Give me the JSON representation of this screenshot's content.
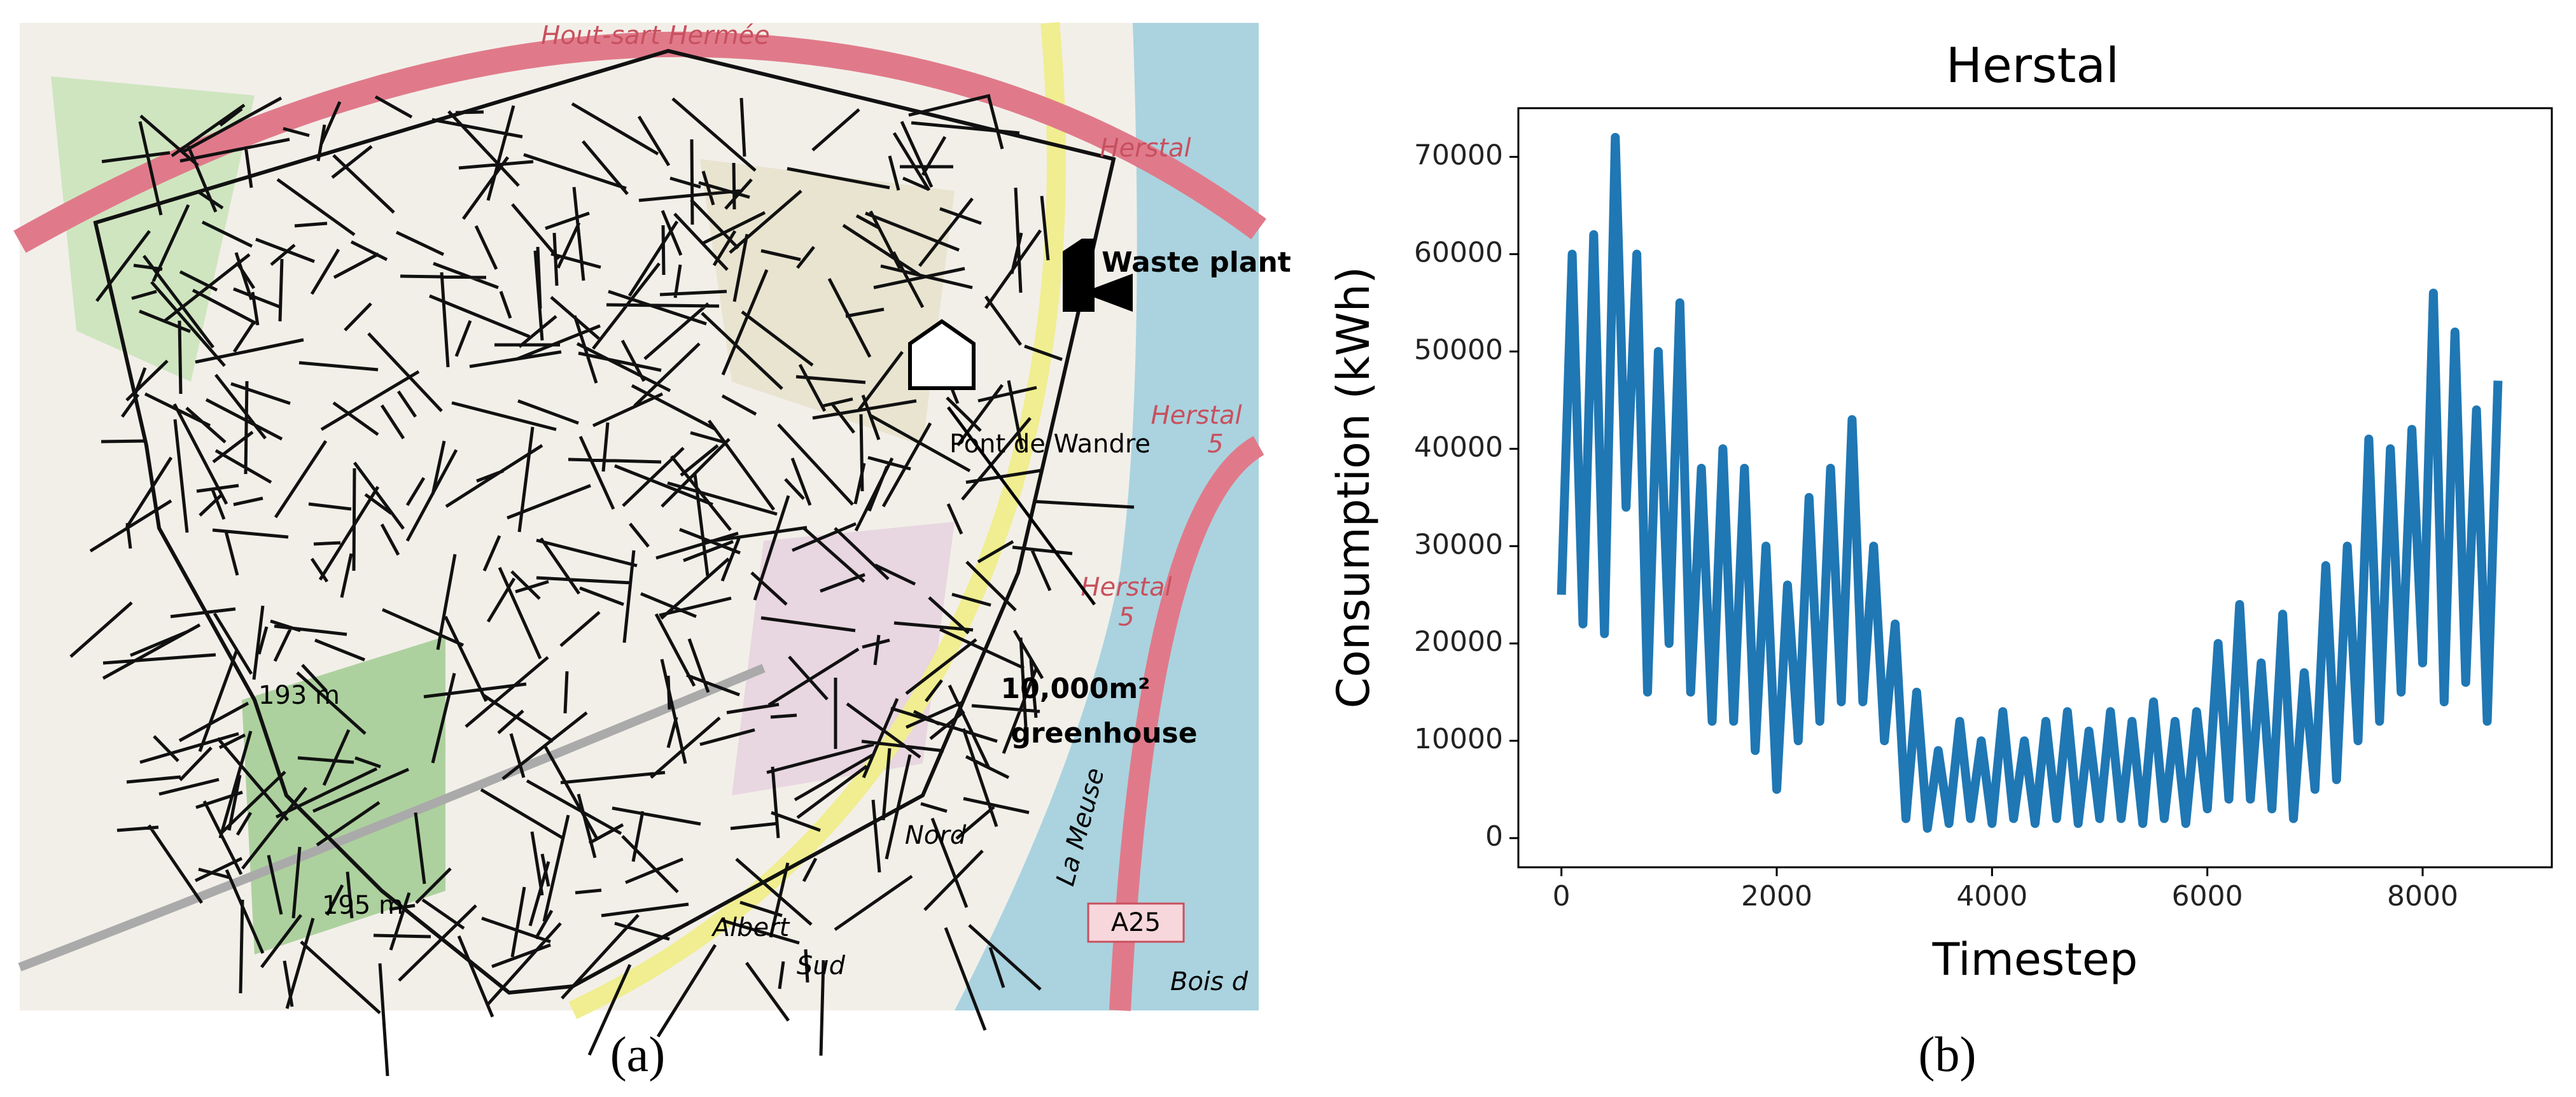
{
  "map": {
    "labels": [
      "Hout-sart Hermée",
      "Herstal",
      "Herstal",
      "Herstal",
      "Pont de Wandre",
      "193 m",
      "195 m",
      "Nord",
      "Sud",
      "Albert",
      "La Meuse",
      "A25",
      "Bois d",
      "5",
      "5"
    ],
    "waste_plant": "Waste plant",
    "greenhouse_size": "10,000m²",
    "greenhouse": "greenhouse"
  },
  "captions": [
    "(a)",
    "(b)"
  ],
  "chart_data": {
    "type": "line",
    "title": "Herstal",
    "x_label": "Timestep",
    "y_label": "Consumption (kWh)",
    "color": "#1f77b4",
    "x": [
      0,
      100,
      200,
      300,
      400,
      500,
      600,
      700,
      800,
      900,
      1000,
      1100,
      1200,
      1300,
      1400,
      1500,
      1600,
      1700,
      1800,
      1900,
      2000,
      2100,
      2200,
      2300,
      2400,
      2500,
      2600,
      2700,
      2800,
      2900,
      3000,
      3100,
      3200,
      3300,
      3400,
      3500,
      3600,
      3700,
      3800,
      3900,
      4000,
      4100,
      4200,
      4300,
      4400,
      4500,
      4600,
      4700,
      4800,
      4900,
      5000,
      5100,
      5200,
      5300,
      5400,
      5500,
      5600,
      5700,
      5800,
      5900,
      6000,
      6100,
      6200,
      6300,
      6400,
      6500,
      6600,
      6700,
      6800,
      6900,
      7000,
      7100,
      7200,
      7300,
      7400,
      7500,
      7600,
      7700,
      7800,
      7900,
      8000,
      8100,
      8200,
      8300,
      8400,
      8500,
      8600,
      8700
    ],
    "values": [
      25000,
      60000,
      22000,
      62000,
      21000,
      72000,
      34000,
      60000,
      15000,
      50000,
      20000,
      55000,
      15000,
      38000,
      12000,
      40000,
      12000,
      38000,
      9000,
      30000,
      5000,
      26000,
      10000,
      35000,
      12000,
      38000,
      14000,
      43000,
      14000,
      30000,
      10000,
      22000,
      2000,
      15000,
      1000,
      9000,
      1500,
      12000,
      2000,
      10000,
      1500,
      13000,
      2000,
      10000,
      1500,
      12000,
      2000,
      13000,
      1500,
      11000,
      2000,
      13000,
      2000,
      12000,
      1500,
      14000,
      2000,
      12000,
      1500,
      13000,
      3000,
      20000,
      4000,
      24000,
      4000,
      18000,
      3000,
      23000,
      2000,
      17000,
      5000,
      28000,
      6000,
      30000,
      10000,
      41000,
      12000,
      40000,
      15000,
      42000,
      18000,
      56000,
      14000,
      52000,
      16000,
      44000,
      12000,
      47000
    ],
    "xlim": [
      -400,
      9200
    ],
    "ylim": [
      -3000,
      75000
    ],
    "xticks": [
      0,
      2000,
      4000,
      6000,
      8000
    ],
    "yticks": [
      0,
      10000,
      20000,
      30000,
      40000,
      50000,
      60000,
      70000
    ]
  }
}
